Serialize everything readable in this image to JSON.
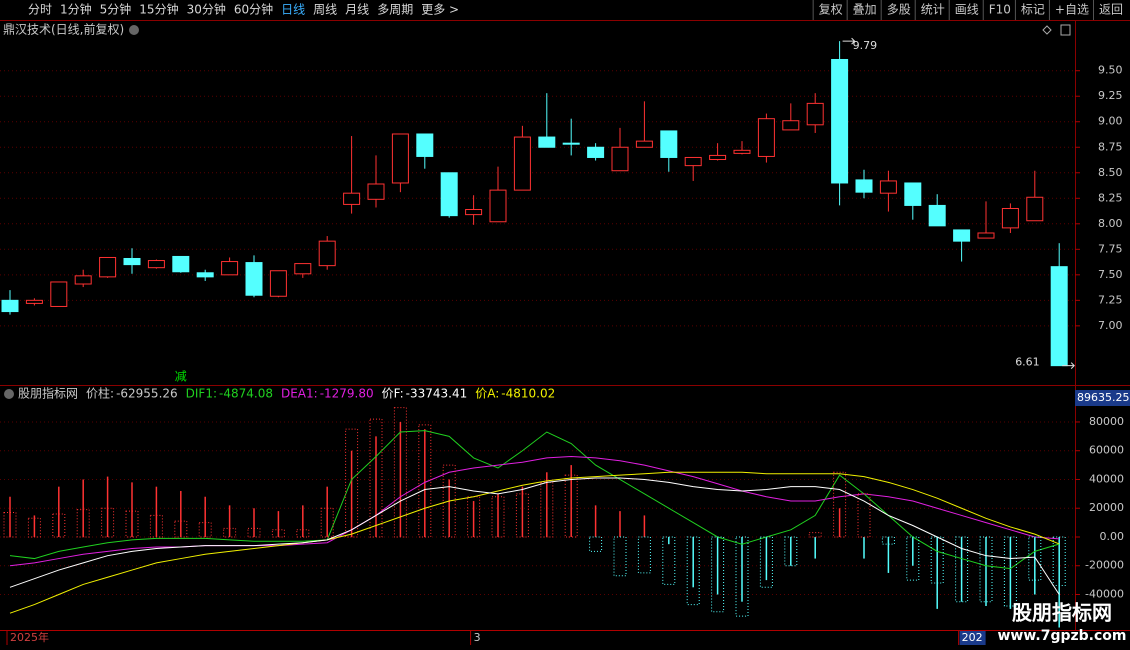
{
  "toolbar": {
    "left": [
      "分时",
      "1分钟",
      "5分钟",
      "15分钟",
      "30分钟",
      "60分钟",
      "日线",
      "周线",
      "月线",
      "多周期",
      "更多 >"
    ],
    "active": 6,
    "right": [
      "复权",
      "叠加",
      "多股",
      "统计",
      "画线",
      "F10",
      "标记",
      "+自选",
      "返回"
    ]
  },
  "chart_data": [
    {
      "type": "candlestick",
      "title": "鼎汉技术(日线,前复权)",
      "categories": [
        "2025年",
        null,
        null,
        null,
        null,
        null,
        null,
        null,
        null,
        null,
        null,
        null,
        null,
        null,
        null,
        null,
        null,
        null,
        null,
        "3",
        null,
        null,
        null,
        null,
        null,
        null,
        null,
        null,
        null,
        null,
        null,
        null,
        null,
        null,
        null,
        null,
        null,
        null,
        null,
        "202",
        null,
        null,
        null,
        null
      ],
      "open": [
        7.25,
        7.22,
        7.19,
        7.41,
        7.48,
        7.66,
        7.57,
        7.68,
        7.52,
        7.5,
        7.62,
        7.29,
        7.51,
        7.59,
        8.19,
        8.24,
        8.4,
        8.88,
        8.5,
        8.09,
        8.02,
        8.33,
        8.85,
        8.79,
        8.75,
        8.52,
        8.75,
        8.91,
        8.57,
        8.63,
        8.69,
        8.66,
        8.92,
        8.97,
        9.61,
        8.43,
        8.3,
        8.4,
        8.18,
        7.94,
        7.86,
        7.96,
        8.03,
        7.58
      ],
      "high": [
        7.35,
        7.27,
        7.43,
        7.55,
        7.67,
        7.76,
        7.65,
        7.68,
        7.55,
        7.67,
        7.69,
        7.54,
        7.61,
        7.88,
        8.86,
        8.67,
        8.88,
        8.88,
        8.5,
        8.28,
        8.56,
        8.96,
        9.28,
        9.03,
        8.79,
        8.94,
        9.2,
        8.91,
        8.65,
        8.79,
        8.81,
        9.08,
        9.18,
        9.28,
        9.79,
        8.53,
        8.52,
        8.4,
        8.29,
        7.94,
        8.22,
        8.2,
        8.52,
        7.81
      ],
      "low": [
        7.11,
        7.2,
        7.19,
        7.38,
        7.47,
        7.51,
        7.56,
        7.52,
        7.44,
        7.5,
        7.28,
        7.28,
        7.47,
        7.55,
        8.1,
        8.16,
        8.31,
        8.54,
        8.06,
        7.99,
        8.02,
        8.33,
        8.75,
        8.67,
        8.62,
        8.52,
        8.75,
        8.51,
        8.42,
        8.62,
        8.68,
        8.6,
        8.92,
        8.89,
        8.18,
        8.25,
        8.12,
        8.04,
        7.98,
        7.63,
        7.86,
        7.91,
        8.03,
        6.61
      ],
      "close": [
        7.14,
        7.25,
        7.43,
        7.49,
        7.67,
        7.6,
        7.64,
        7.53,
        7.48,
        7.63,
        7.3,
        7.54,
        7.61,
        7.83,
        8.3,
        8.39,
        8.88,
        8.66,
        8.08,
        8.14,
        8.33,
        8.85,
        8.75,
        8.78,
        8.65,
        8.75,
        8.81,
        8.65,
        8.65,
        8.67,
        8.72,
        9.03,
        9.01,
        9.18,
        8.4,
        8.31,
        8.42,
        8.18,
        7.98,
        7.83,
        7.91,
        8.15,
        8.26,
        6.61
      ],
      "colors": {
        "up": "#ff3232",
        "down": "#54ffff"
      },
      "ylim": [
        6.44,
        9.85
      ],
      "yticks": [
        {
          "value": 7,
          "label": "7.00"
        },
        7.25,
        {
          "value": 7.5,
          "label": "7.50"
        },
        7.75,
        {
          "value": 8,
          "label": "8.00"
        },
        8.25,
        {
          "value": 8.5,
          "label": "8.50"
        },
        8.75,
        {
          "value": 9,
          "label": "9.00"
        },
        9.25,
        {
          "value": 9.5,
          "label": "9.50"
        }
      ],
      "annotations": [
        {
          "value": 9.79,
          "index": 34
        },
        {
          "value": 6.61,
          "index": 43
        }
      ],
      "signals": [
        {
          "text": "减",
          "index": 7,
          "color": "#00e000"
        }
      ]
    },
    {
      "type": "combo",
      "title": "股朋指标网",
      "readout": "89635.25",
      "ylim": [
        -63300,
        91800
      ],
      "yticks": [
        -40000,
        -20000,
        {
          "value": 0,
          "label": "0.00"
        },
        20000,
        40000,
        60000,
        80000
      ],
      "series": [
        {
          "name": "价柱:",
          "last_label": "-62955.26",
          "style": "bars",
          "color": "#ff3232",
          "neg_color": "#54ffff",
          "legend_color": "#c8c8c8",
          "values": [
            28000,
            15000,
            35000,
            40000,
            42000,
            38000,
            35000,
            32000,
            28000,
            22000,
            20000,
            18000,
            22000,
            35000,
            60000,
            70000,
            80000,
            75000,
            40000,
            25000,
            30000,
            35000,
            45000,
            50000,
            22000,
            18000,
            15000,
            -5000,
            -35000,
            -40000,
            -45000,
            -30000,
            -20000,
            -15000,
            20000,
            -15000,
            -25000,
            -20000,
            -50000,
            -45000,
            -48000,
            -50000,
            -40000,
            -62955.26
          ]
        },
        {
          "name": "DIF1:",
          "last_label": "-4874.08",
          "style": "line",
          "color": "#20d020",
          "legend_color": "#20d020",
          "values": [
            -13000,
            -15000,
            -10000,
            -7000,
            -4000,
            -2000,
            -1000,
            -1000,
            -1000,
            -2000,
            -3000,
            -3000,
            -3000,
            -2000,
            40000,
            56000,
            73000,
            74000,
            70000,
            55000,
            48000,
            60000,
            73000,
            65000,
            50000,
            40000,
            30000,
            20000,
            10000,
            0,
            -5000,
            0,
            5000,
            15000,
            43000,
            30000,
            15000,
            0,
            -10000,
            -15000,
            -20000,
            -22000,
            -10000,
            -4874.08
          ]
        },
        {
          "name": "DEA1:",
          "last_label": "-1279.80",
          "style": "line",
          "color": "#e020e0",
          "legend_color": "#e020e0",
          "values": [
            -20000,
            -18000,
            -15000,
            -12000,
            -10000,
            -8000,
            -7000,
            -7000,
            -6000,
            -6000,
            -6000,
            -6000,
            -5000,
            -4000,
            5000,
            15000,
            28000,
            38000,
            45000,
            48000,
            50000,
            52000,
            55000,
            56000,
            55000,
            53000,
            50000,
            46000,
            42000,
            37000,
            32000,
            28000,
            25000,
            25000,
            28000,
            30000,
            28000,
            25000,
            20000,
            15000,
            10000,
            5000,
            0,
            -1279.8
          ]
        },
        {
          "name": "价F:",
          "last_label": "-33743.41",
          "style": "dotted-bars",
          "color": "#ff3232",
          "neg_color": "#54ffff",
          "legend_color": "#ffffff",
          "values": [
            17000,
            13000,
            16000,
            19000,
            20000,
            18000,
            15000,
            11000,
            10000,
            6000,
            6000,
            5000,
            5000,
            20000,
            75000,
            82000,
            90000,
            78000,
            50000,
            28000,
            28000,
            30000,
            38000,
            43000,
            -10000,
            -27000,
            -25000,
            -33000,
            -47000,
            -52000,
            -55000,
            -35000,
            -20000,
            3000,
            45000,
            30000,
            -5000,
            -30000,
            -32000,
            -45000,
            -45000,
            -48000,
            -30000,
            -33743.41
          ]
        },
        {
          "name": "价A:",
          "last_label": "-4810.02",
          "style": "line",
          "color": "#f0f000",
          "legend_color": "#f0f000",
          "values": [
            -53000,
            -47000,
            -40000,
            -33000,
            -28000,
            -23000,
            -18000,
            -15000,
            -12000,
            -10000,
            -8000,
            -6000,
            -4000,
            -2000,
            2000,
            8000,
            14000,
            20000,
            25000,
            28000,
            32000,
            36000,
            39000,
            41000,
            42000,
            43000,
            44000,
            45000,
            45000,
            45000,
            45000,
            44000,
            44000,
            44000,
            44000,
            42000,
            38000,
            33000,
            27000,
            20000,
            13000,
            7000,
            2000,
            -4810.02
          ]
        },
        {
          "style": "line",
          "color": "#ffffff",
          "values": [
            -35000,
            -29000,
            -23000,
            -18000,
            -13000,
            -10000,
            -8000,
            -7000,
            -6000,
            -6000,
            -6000,
            -5000,
            -4000,
            -2000,
            5000,
            15000,
            25000,
            33000,
            35000,
            32000,
            30000,
            33000,
            38000,
            40000,
            41000,
            41000,
            40000,
            38000,
            35000,
            33000,
            32000,
            33000,
            35000,
            35000,
            33000,
            25000,
            15000,
            8000,
            0,
            -8000,
            -13000,
            -15000,
            -14000,
            -40000
          ]
        }
      ]
    }
  ],
  "watermark": {
    "line1": "股朋指标网",
    "line2": "www.7gpzb.com"
  }
}
